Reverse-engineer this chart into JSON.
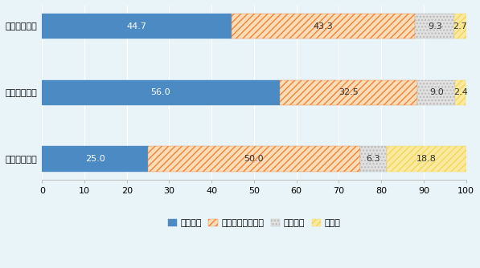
{
  "categories": [
    "収集運搬業者",
    "中間処理業者",
    "最終処分業者"
  ],
  "series": {
    "増加した": [
      44.7,
      56.0,
      25.0
    ],
    "変化は見られない": [
      43.3,
      32.5,
      50.0
    ],
    "減少した": [
      9.3,
      9.0,
      6.3
    ],
    "その他": [
      2.7,
      2.4,
      18.8
    ]
  },
  "colors": {
    "増加した": "#4C8AC4",
    "変化は見られない": "#F0833A",
    "減少した": "#B8B8B8",
    "その他": "#F5D55A"
  },
  "face_colors": {
    "増加した": "#4C8AC4",
    "変化は見られない": "#FCDDB8",
    "減少した": "#E0E0E0",
    "その他": "#FAEAA0"
  },
  "hatches": {
    "増加した": "",
    "変化は見られない": "////",
    "減少した": "....",
    "その他": "////"
  },
  "xlim": [
    0,
    100
  ],
  "xticks": [
    0,
    10,
    20,
    30,
    40,
    50,
    60,
    70,
    80,
    90,
    100
  ],
  "bar_height": 0.38,
  "background_color": "#E8F4F8",
  "label_fontsize": 8,
  "tick_fontsize": 8,
  "legend_fontsize": 8
}
